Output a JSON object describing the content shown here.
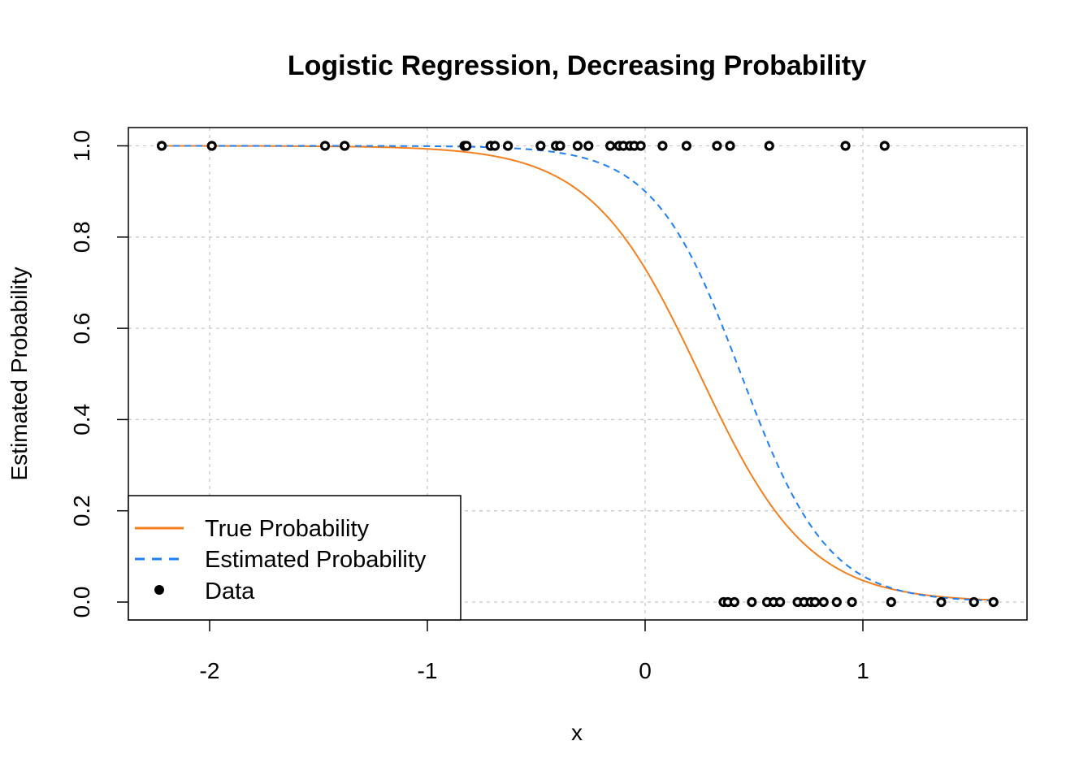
{
  "chart_data": {
    "type": "line",
    "title": "Logistic Regression, Decreasing Probability",
    "xlabel": "x",
    "ylabel": "Estimated Probability",
    "xlim": [
      -2.4,
      1.75
    ],
    "ylim": [
      -0.04,
      1.04
    ],
    "xticks": [
      -2,
      -1,
      0,
      1
    ],
    "xtick_labels": [
      "-2",
      "-1",
      "0",
      "1"
    ],
    "yticks": [
      0.0,
      0.2,
      0.4,
      0.6,
      0.8,
      1.0
    ],
    "ytick_labels": [
      "0.0",
      "0.2",
      "0.4",
      "0.6",
      "0.8",
      "1.0"
    ],
    "grid": true,
    "legend_position": "bottom-left",
    "series": [
      {
        "name": "True Probability",
        "kind": "line",
        "style": "solid",
        "color": "#F47F1F",
        "intercept": 1.0,
        "slope": -4.0,
        "x_range": [
          -2.22,
          1.6
        ]
      },
      {
        "name": "Estimated Probability",
        "kind": "line",
        "style": "dashed",
        "color": "#1F7FF4",
        "intercept": 2.2,
        "slope": -5.0,
        "x_range": [
          -2.22,
          1.6
        ]
      },
      {
        "name": "Data",
        "kind": "points",
        "color": "#000000",
        "points_y1": [
          -2.22,
          -1.99,
          -1.47,
          -1.38,
          -0.83,
          -0.82,
          -0.71,
          -0.69,
          -0.63,
          -0.48,
          -0.41,
          -0.39,
          -0.31,
          -0.26,
          -0.16,
          -0.12,
          -0.1,
          -0.07,
          -0.05,
          -0.02,
          0.08,
          0.19,
          0.33,
          0.39,
          0.57,
          0.92,
          1.1
        ],
        "points_y0": [
          0.36,
          0.38,
          0.41,
          0.49,
          0.56,
          0.59,
          0.62,
          0.7,
          0.73,
          0.76,
          0.78,
          0.82,
          0.88,
          0.95,
          1.13,
          1.36,
          1.51,
          1.6
        ]
      }
    ]
  }
}
